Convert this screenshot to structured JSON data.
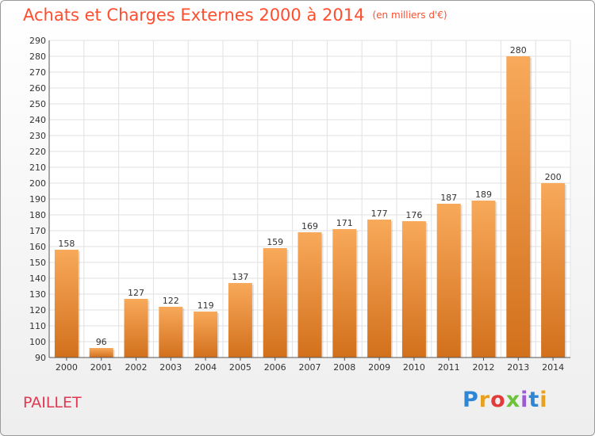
{
  "header": {
    "title": "Achats et Charges Externes 2000 à 2014",
    "unit": "(en milliers d'€)"
  },
  "footer": {
    "commune": "PAILLET",
    "logo": [
      "P",
      "r",
      "o",
      "x",
      "i",
      "t",
      "i"
    ]
  },
  "colors": {
    "title": "#ff4d2e",
    "bar_light": "#f8a95a",
    "bar_dark": "#d2701c",
    "grid": "#e2e2e2",
    "commune": "#e03a52"
  },
  "chart_data": {
    "type": "bar",
    "title": "Achats et Charges Externes 2000 à 2014",
    "subtitle": "(en milliers d'€)",
    "categories": [
      "2000",
      "2001",
      "2002",
      "2003",
      "2004",
      "2005",
      "2006",
      "2007",
      "2008",
      "2009",
      "2010",
      "2011",
      "2012",
      "2013",
      "2014"
    ],
    "values": [
      158,
      96,
      127,
      122,
      119,
      137,
      159,
      169,
      171,
      177,
      176,
      187,
      189,
      280,
      200
    ],
    "data_labels": [
      "158",
      "96",
      "127",
      "122",
      "119",
      "137",
      "159",
      "169",
      "171",
      "177",
      "176",
      "187",
      "189",
      "280",
      "200"
    ],
    "ylim": [
      90,
      290
    ],
    "yticks": [
      90,
      100,
      110,
      120,
      130,
      140,
      150,
      160,
      170,
      180,
      190,
      200,
      210,
      220,
      230,
      240,
      250,
      260,
      270,
      280,
      290
    ],
    "grid": true,
    "legend": "none"
  }
}
